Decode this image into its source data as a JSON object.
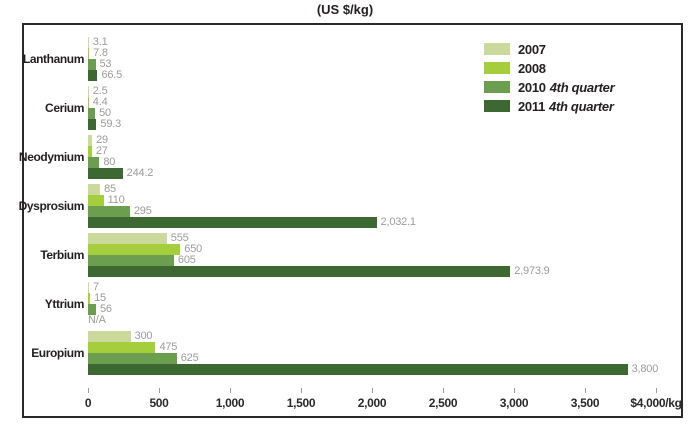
{
  "title": "(US $/kg)",
  "colors": {
    "series_2007": "#ccd99c",
    "series_2008": "#a5ce3c",
    "series_2010_q4": "#6b9e4e",
    "series_2011_q4": "#3e6832",
    "value_label": "#9b9b99",
    "text": "#231f20",
    "border": "#2a2a2a",
    "tick": "#9b9b99"
  },
  "chart_data": {
    "type": "bar",
    "orientation": "horizontal",
    "title": "(US $/kg)",
    "categories": [
      "Lanthanum",
      "Cerium",
      "Neodymium",
      "Dysprosium",
      "Terbium",
      "Yttrium",
      "Europium"
    ],
    "series": [
      {
        "name": "2007",
        "qualifier": "",
        "color": "#ccd99c",
        "values": [
          3.1,
          2.5,
          29,
          85,
          555,
          7,
          300
        ],
        "labels": [
          "3.1",
          "2.5",
          "29",
          "85",
          "555",
          "7",
          "300"
        ]
      },
      {
        "name": "2008",
        "qualifier": "",
        "color": "#a5ce3c",
        "values": [
          7.8,
          4.4,
          27,
          110,
          650,
          15,
          475
        ],
        "labels": [
          "7.8",
          "4.4",
          "27",
          "110",
          "650",
          "15",
          "475"
        ]
      },
      {
        "name": "2010",
        "qualifier": "4th quarter",
        "color": "#6b9e4e",
        "values": [
          53,
          50,
          80,
          295,
          605,
          56,
          625
        ],
        "labels": [
          "53",
          "50",
          "80",
          "295",
          "605",
          "56",
          "625"
        ]
      },
      {
        "name": "2011",
        "qualifier": "4th quarter",
        "color": "#3e6832",
        "values": [
          66.5,
          59.3,
          244.2,
          2032.1,
          2973.9,
          null,
          3800
        ],
        "labels": [
          "66.5",
          "59.3",
          "244.2",
          "2,032.1",
          "2,973.9",
          "N/A",
          "3,800"
        ]
      }
    ],
    "x_axis": {
      "xlim": [
        0,
        4000
      ],
      "ticks": [
        0,
        500,
        1000,
        1500,
        2000,
        2500,
        3000,
        3500,
        4000
      ],
      "tick_labels": [
        "0",
        "500",
        "1,000",
        "1,500",
        "2,000",
        "2,500",
        "3,000",
        "3,500",
        "$4,000/kg"
      ]
    },
    "legend_position": "top-right",
    "grid": false
  }
}
